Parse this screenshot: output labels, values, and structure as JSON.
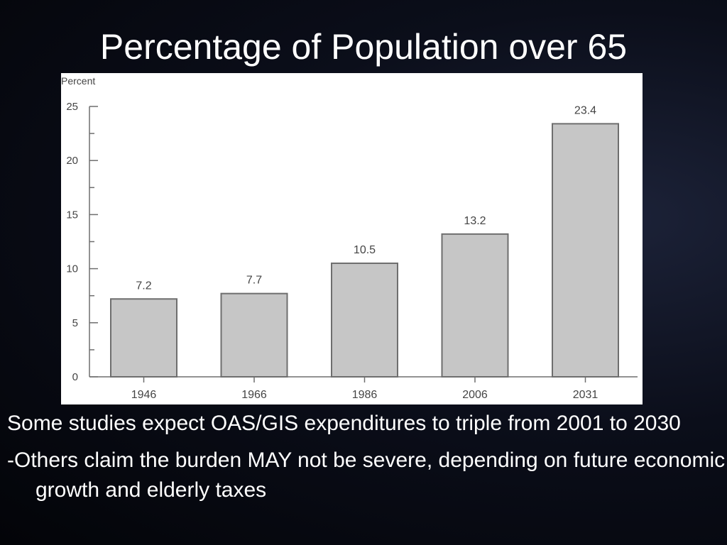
{
  "slide": {
    "title": "Percentage of Population over 65",
    "bullets": [
      "Some studies expect OAS/GIS expenditures to triple from 2001 to 2030",
      "-Others claim the burden MAY not be severe, depending on future economic growth and elderly taxes"
    ]
  },
  "colors": {
    "background": "#05070f",
    "bar_fill": "#c6c6c6",
    "bar_stroke": "#6e6e6e",
    "axis": "#6e6e6e",
    "text_dark": "#444444"
  },
  "chart_data": {
    "type": "bar",
    "categories": [
      "1946",
      "1966",
      "1986",
      "2006",
      "2031"
    ],
    "values": [
      7.2,
      7.7,
      10.5,
      13.2,
      23.4
    ],
    "data_labels": [
      "7.2",
      "7.7",
      "10.5",
      "13.2",
      "23.4"
    ],
    "title": "",
    "xlabel": "",
    "ylabel": "Percent",
    "ylim": [
      0,
      25
    ],
    "yticks": [
      0,
      5,
      10,
      15,
      20,
      25
    ],
    "ytick_labels": [
      "0",
      "5",
      "10",
      "15",
      "20",
      "25"
    ],
    "grid": false,
    "legend": "none"
  }
}
